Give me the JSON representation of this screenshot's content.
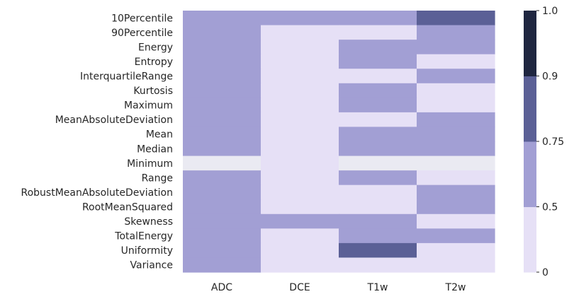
{
  "chart_data": {
    "type": "heatmap",
    "title": "",
    "xlabel": "",
    "ylabel": "",
    "columns": [
      "ADC",
      "DCE",
      "T1w",
      "T2w"
    ],
    "rows": [
      "10Percentile",
      "90Percentile",
      "Energy",
      "Entropy",
      "InterquartileRange",
      "Kurtosis",
      "Maximum",
      "MeanAbsoluteDeviation",
      "Mean",
      "Median",
      "Minimum",
      "Range",
      "RobustMeanAbsoluteDeviation",
      "RootMeanSquared",
      "Skewness",
      "TotalEnergy",
      "Uniformity",
      "Variance"
    ],
    "values": [
      [
        0.6,
        0.6,
        0.6,
        0.8
      ],
      [
        0.6,
        0.2,
        0.2,
        0.6
      ],
      [
        0.6,
        0.2,
        0.6,
        0.6
      ],
      [
        0.6,
        0.2,
        0.6,
        0.2
      ],
      [
        0.6,
        0.2,
        0.2,
        0.6
      ],
      [
        0.6,
        0.2,
        0.6,
        0.2
      ],
      [
        0.6,
        0.2,
        0.6,
        0.2
      ],
      [
        0.6,
        0.2,
        0.2,
        0.6
      ],
      [
        0.6,
        0.2,
        0.6,
        0.6
      ],
      [
        0.6,
        0.2,
        0.6,
        0.6
      ],
      [
        null,
        0.2,
        null,
        null
      ],
      [
        0.6,
        0.2,
        0.6,
        0.2
      ],
      [
        0.6,
        0.2,
        0.2,
        0.6
      ],
      [
        0.6,
        0.2,
        0.2,
        0.6
      ],
      [
        0.6,
        0.6,
        0.6,
        0.2
      ],
      [
        0.6,
        0.2,
        0.6,
        0.6
      ],
      [
        0.6,
        0.2,
        0.8,
        0.2
      ],
      [
        0.6,
        0.2,
        0.2,
        0.2
      ]
    ],
    "colorbar": {
      "boundaries": [
        0,
        0.5,
        0.75,
        0.9,
        1.0
      ],
      "tick_labels": [
        "0",
        "0.5",
        "0.75",
        "0.9",
        "1.0"
      ],
      "colors": [
        "#e6e0f6",
        "#a29fd4",
        "#5b6096",
        "#1f2640"
      ]
    },
    "missing_color": "#eaeaf2",
    "grid": false
  }
}
